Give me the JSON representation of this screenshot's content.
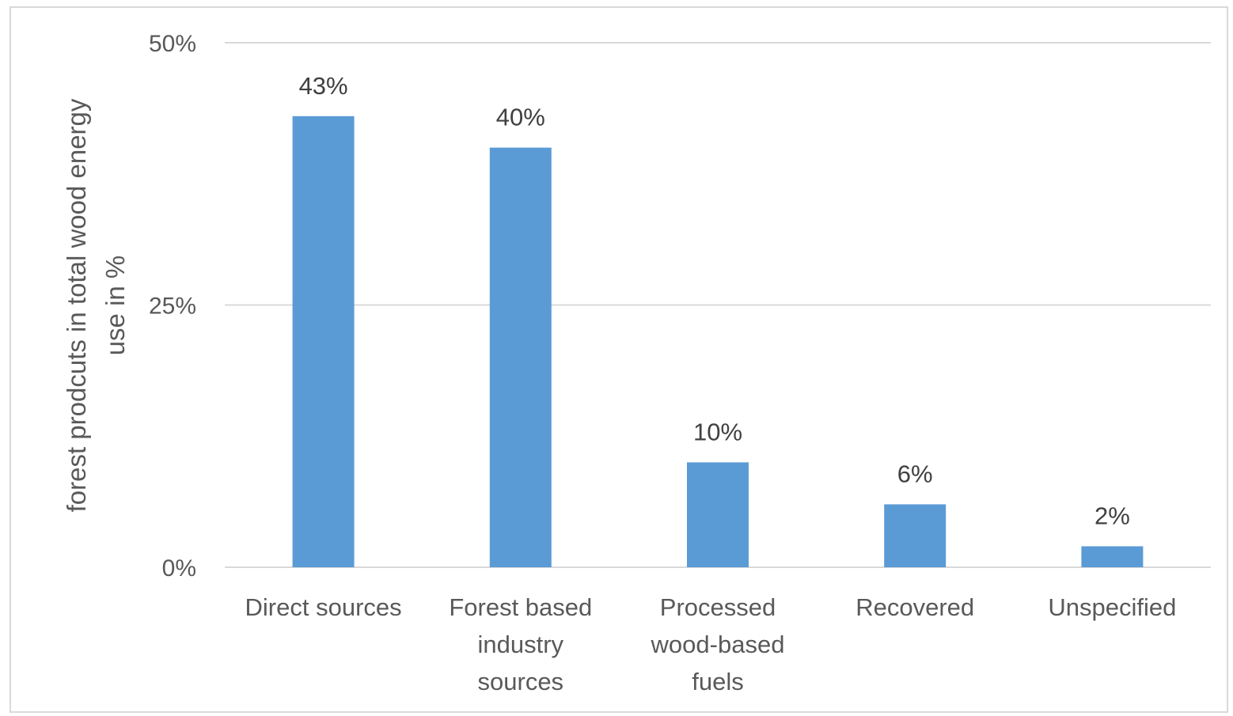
{
  "chart_data": {
    "type": "bar",
    "title": "",
    "xlabel": "",
    "ylabel": [
      "forest  prodcuts in total wood energy",
      "use in %"
    ],
    "categories": [
      [
        "Direct sources"
      ],
      [
        "Forest based",
        "industry",
        "sources"
      ],
      [
        "Processed",
        "wood-based",
        "fuels"
      ],
      [
        "Recovered"
      ],
      [
        "Unspecified"
      ]
    ],
    "values": [
      43,
      40,
      10,
      6,
      2
    ],
    "data_labels": [
      "43%",
      "40%",
      "10%",
      "6%",
      "2%"
    ],
    "ylim": [
      0,
      50
    ],
    "yticks": [
      0,
      25,
      50
    ],
    "ytick_labels": [
      "0%",
      "25%",
      "50%"
    ],
    "grid": true,
    "legend": "none",
    "colors": {
      "bar": "#5b9bd5",
      "grid": "#d9d9d9",
      "text": "#595959",
      "frame": "#d9d9d9"
    }
  }
}
